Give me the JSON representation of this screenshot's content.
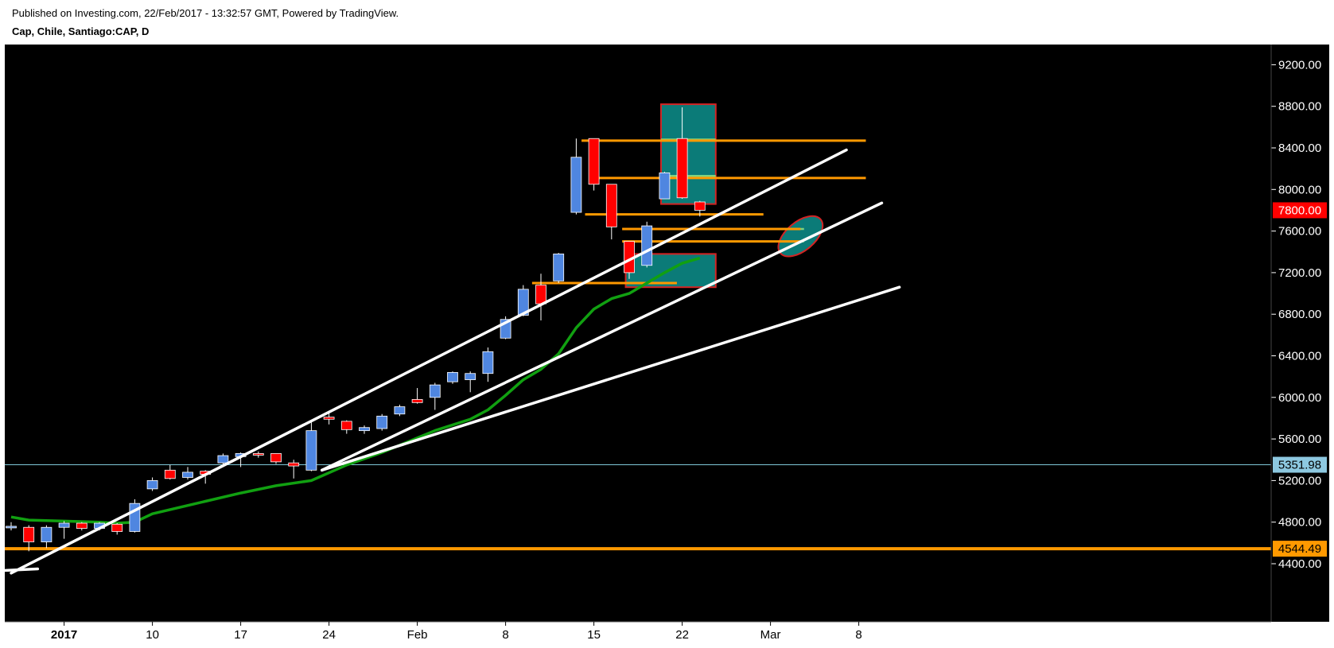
{
  "header": {
    "published": "Published on Investing.com, 22/Feb/2017 - 13:32:57 GMT, Powered by TradingView.",
    "symbol": "Cap, Chile, Santiago:CAP, D"
  },
  "colors": {
    "background": "#000000",
    "up": "#4f86e0",
    "down": "#ff0000",
    "wick": "#ffffff",
    "moving_average": "#11a011",
    "trendline": "#ffffff",
    "level_line": "#ff9900",
    "zone_fill": "#0b7b78",
    "zone_border": "#d22424",
    "zone_inner": "#7fd37f",
    "hline_cyan": "#7ec8d8"
  },
  "chart_data": {
    "type": "candlestick",
    "y_axis": {
      "ticks": [
        4400,
        4800,
        5200,
        5600,
        6000,
        6400,
        6800,
        7200,
        7600,
        8000,
        8400,
        8800,
        9200
      ],
      "ylim": [
        4240,
        9420
      ],
      "side": "right"
    },
    "x_axis": {
      "ticks": [
        {
          "label": "2017",
          "bold": true
        },
        {
          "label": "10"
        },
        {
          "label": "17"
        },
        {
          "label": "24"
        },
        {
          "label": "Feb"
        },
        {
          "label": "8"
        },
        {
          "label": "15"
        },
        {
          "label": "22"
        },
        {
          "label": "Mar"
        },
        {
          "label": "8"
        }
      ],
      "tick_indices": [
        3,
        8,
        13,
        18,
        23,
        28,
        33,
        38,
        43,
        48
      ]
    },
    "candles": [
      {
        "o": 4750,
        "h": 4800,
        "l": 4720,
        "c": 4760
      },
      {
        "o": 4750,
        "h": 4770,
        "l": 4520,
        "c": 4610
      },
      {
        "o": 4610,
        "h": 4770,
        "l": 4550,
        "c": 4750
      },
      {
        "o": 4750,
        "h": 4810,
        "l": 4640,
        "c": 4790
      },
      {
        "o": 4790,
        "h": 4800,
        "l": 4720,
        "c": 4740
      },
      {
        "o": 4740,
        "h": 4800,
        "l": 4720,
        "c": 4790
      },
      {
        "o": 4780,
        "h": 4790,
        "l": 4680,
        "c": 4710
      },
      {
        "o": 4710,
        "h": 5020,
        "l": 4700,
        "c": 4980
      },
      {
        "o": 5120,
        "h": 5230,
        "l": 5100,
        "c": 5200
      },
      {
        "o": 5300,
        "h": 5350,
        "l": 5210,
        "c": 5220
      },
      {
        "o": 5230,
        "h": 5330,
        "l": 5210,
        "c": 5280
      },
      {
        "o": 5290,
        "h": 5300,
        "l": 5170,
        "c": 5260
      },
      {
        "o": 5370,
        "h": 5460,
        "l": 5350,
        "c": 5440
      },
      {
        "o": 5430,
        "h": 5470,
        "l": 5330,
        "c": 5460
      },
      {
        "o": 5460,
        "h": 5480,
        "l": 5420,
        "c": 5450
      },
      {
        "o": 5460,
        "h": 5460,
        "l": 5360,
        "c": 5380
      },
      {
        "o": 5370,
        "h": 5400,
        "l": 5220,
        "c": 5340
      },
      {
        "o": 5300,
        "h": 5760,
        "l": 5290,
        "c": 5680
      },
      {
        "o": 5810,
        "h": 5870,
        "l": 5740,
        "c": 5790
      },
      {
        "o": 5770,
        "h": 5780,
        "l": 5650,
        "c": 5690
      },
      {
        "o": 5680,
        "h": 5730,
        "l": 5650,
        "c": 5710
      },
      {
        "o": 5700,
        "h": 5840,
        "l": 5680,
        "c": 5820
      },
      {
        "o": 5840,
        "h": 5930,
        "l": 5820,
        "c": 5910
      },
      {
        "o": 5980,
        "h": 6090,
        "l": 5940,
        "c": 5950
      },
      {
        "o": 6000,
        "h": 6140,
        "l": 5880,
        "c": 6120
      },
      {
        "o": 6150,
        "h": 6250,
        "l": 6130,
        "c": 6240
      },
      {
        "o": 6170,
        "h": 6250,
        "l": 6050,
        "c": 6230
      },
      {
        "o": 6230,
        "h": 6480,
        "l": 6150,
        "c": 6440
      },
      {
        "o": 6570,
        "h": 6780,
        "l": 6560,
        "c": 6750
      },
      {
        "o": 6790,
        "h": 7080,
        "l": 6780,
        "c": 7040
      },
      {
        "o": 7080,
        "h": 7190,
        "l": 6740,
        "c": 6900
      },
      {
        "o": 7120,
        "h": 7390,
        "l": 7100,
        "c": 7380
      },
      {
        "o": 7780,
        "h": 8490,
        "l": 7760,
        "c": 8310
      },
      {
        "o": 8490,
        "h": 8490,
        "l": 7990,
        "c": 8050
      },
      {
        "o": 8050,
        "h": 8050,
        "l": 7520,
        "c": 7640
      },
      {
        "o": 7500,
        "h": 7500,
        "l": 7140,
        "c": 7200
      },
      {
        "o": 7270,
        "h": 7690,
        "l": 7250,
        "c": 7650
      },
      {
        "o": 7910,
        "h": 8170,
        "l": 7910,
        "c": 8160
      },
      {
        "o": 8490,
        "h": 8790,
        "l": 7910,
        "c": 7920
      },
      {
        "o": 7880,
        "h": 7890,
        "l": 7740,
        "c": 7800
      }
    ],
    "moving_average": [
      [
        0,
        4850
      ],
      [
        1,
        4820
      ],
      [
        3,
        4810
      ],
      [
        5,
        4800
      ],
      [
        6,
        4790
      ],
      [
        7,
        4800
      ],
      [
        8,
        4880
      ],
      [
        11,
        5000
      ],
      [
        13,
        5080
      ],
      [
        15,
        5150
      ],
      [
        17,
        5200
      ],
      [
        19,
        5350
      ],
      [
        21,
        5470
      ],
      [
        24,
        5680
      ],
      [
        26,
        5790
      ],
      [
        27,
        5880
      ],
      [
        28,
        6020
      ],
      [
        29,
        6170
      ],
      [
        30,
        6270
      ],
      [
        31,
        6420
      ],
      [
        32,
        6670
      ],
      [
        33,
        6850
      ],
      [
        34,
        6950
      ],
      [
        35,
        7000
      ],
      [
        36,
        7100
      ],
      [
        37,
        7200
      ],
      [
        38,
        7290
      ],
      [
        39,
        7340
      ]
    ],
    "trendlines": [
      {
        "from": [
          0,
          4310
        ],
        "to": [
          47.3,
          8380
        ]
      },
      {
        "from": [
          17.6,
          5300
        ],
        "to": [
          49.3,
          7870
        ]
      },
      {
        "from": [
          17.6,
          5300
        ],
        "to": [
          50.3,
          7060
        ]
      },
      {
        "from": [
          -1,
          4330
        ],
        "to": [
          1.5,
          4350
        ]
      }
    ],
    "horizontal_levels": [
      {
        "from": 32.3,
        "to": 48.4,
        "y": 8470
      },
      {
        "from": 33.3,
        "to": 48.4,
        "y": 8110
      },
      {
        "from": 32.5,
        "to": 42.6,
        "y": 7760
      },
      {
        "from": 34.6,
        "to": 44.7,
        "y": 7620
      },
      {
        "from": 34.6,
        "to": 44.7,
        "y": 7500
      },
      {
        "from": 29.5,
        "to": 37.7,
        "y": 7100
      }
    ],
    "zones": [
      {
        "x0": 36.8,
        "x1": 39.9,
        "y0": 7860,
        "y1": 8820,
        "inner": [
          [
            36.8,
            39.9,
            8480
          ],
          [
            36.8,
            39.9,
            8130
          ]
        ]
      },
      {
        "x0": 34.8,
        "x1": 39.9,
        "y0": 7060,
        "y1": 7380,
        "inner": [
          [
            34.8,
            37.5,
            7100
          ]
        ]
      }
    ],
    "ellipse": {
      "cx": 44.7,
      "cy": 7550,
      "rx_px": 33,
      "ry_px": 18,
      "angle": -40,
      "inner": [
        [
          43.8,
          44.9,
          7620
        ],
        [
          43.8,
          44.9,
          7500
        ]
      ]
    },
    "price_labels": [
      {
        "value": "7800.00",
        "y": 7800,
        "bg": "#ff0000",
        "fg": "#ffffff"
      },
      {
        "value": "5351.98",
        "y": 5351.98,
        "bg": "#8dc8e0",
        "fg": "#000000",
        "line": true
      },
      {
        "value": "4544.49",
        "y": 4544.49,
        "bg": "#ff9900",
        "fg": "#000000",
        "line": true
      }
    ]
  }
}
